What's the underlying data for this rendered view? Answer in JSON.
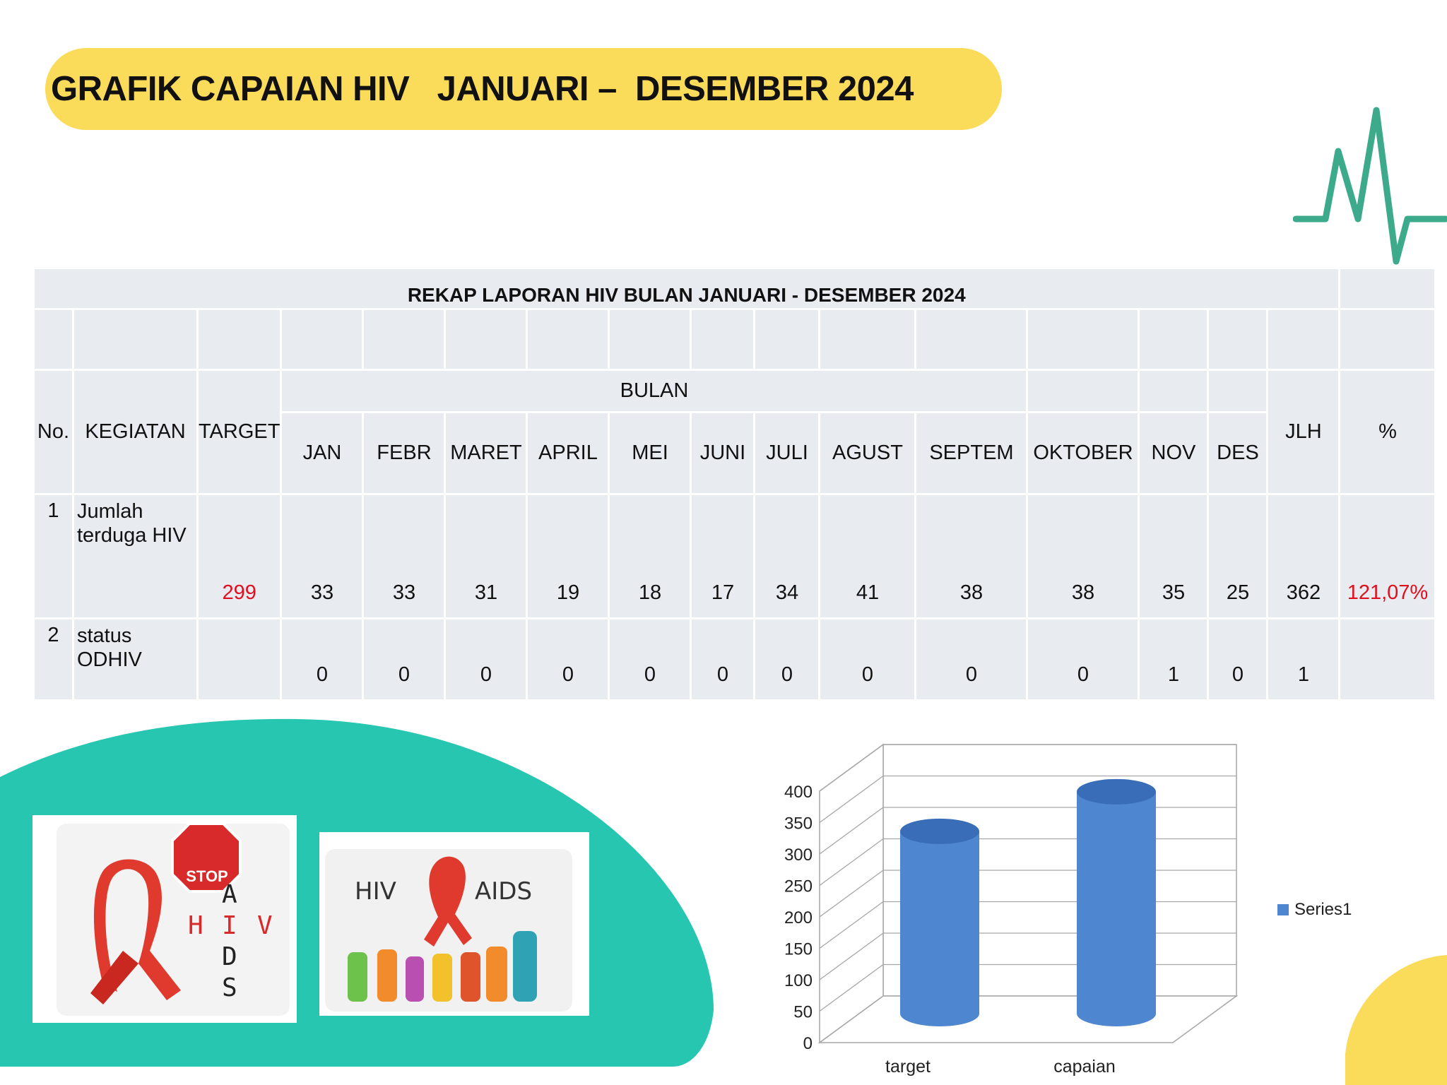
{
  "header": {
    "title": "GRAFIK CAPAIAN HIV   JANUARI –  DESEMBER 2024"
  },
  "table": {
    "title": "REKAP LAPORAN HIV BULAN JANUARI - DESEMBER 2024",
    "col_no": "No.",
    "col_kegiatan": "KEGIATAN",
    "col_target": "TARGET",
    "col_bulan": "BULAN",
    "months": [
      "JAN",
      "FEBR",
      "MARET",
      "APRIL",
      "MEI",
      "JUNI",
      "JULI",
      "AGUST",
      "SEPTEM",
      "OKTOBER",
      "NOV",
      "DES"
    ],
    "col_jlh": "JLH",
    "col_pct": "%",
    "rows": [
      {
        "no": "1",
        "kegiatan": "Jumlah terduga HIV",
        "target": "299",
        "values": [
          "33",
          "33",
          "31",
          "19",
          "18",
          "17",
          "34",
          "41",
          "38",
          "38",
          "35",
          "25"
        ],
        "jlh": "362",
        "pct": "121,07%"
      },
      {
        "no": "2",
        "kegiatan": "status ODHIV",
        "target": "",
        "values": [
          "0",
          "0",
          "0",
          "0",
          "0",
          "0",
          "0",
          "0",
          "0",
          "0",
          "1",
          "0"
        ],
        "jlh": "1",
        "pct": ""
      }
    ]
  },
  "images": {
    "stop_sign_text": "STOP",
    "stop_aids_letters": [
      "A",
      "I",
      "D",
      "S"
    ],
    "stop_hiv_letters": [
      "H",
      "I",
      "V"
    ],
    "hiv_text": "HIV",
    "aids_text": "AIDS"
  },
  "chart_data": {
    "type": "bar",
    "categories": [
      "target",
      "capaian"
    ],
    "series": [
      {
        "name": "Series1",
        "values": [
          299,
          362
        ]
      }
    ],
    "ylim": [
      0,
      400
    ],
    "yticks": [
      0,
      50,
      100,
      150,
      200,
      250,
      300,
      350,
      400
    ],
    "legend": "right",
    "grid": true,
    "colors": {
      "bar": "#4f86d0",
      "bar_top": "#3a6db8"
    }
  },
  "colors": {
    "title_pill": "#fbdb5a",
    "teal": "#26c6b0",
    "pulse": "#3daa8b",
    "red": "#e0101e"
  }
}
